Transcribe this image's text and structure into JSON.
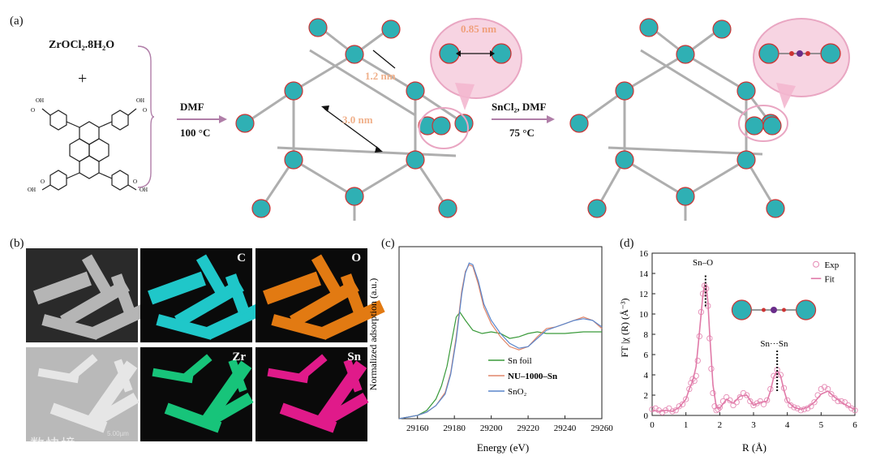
{
  "panel_a": {
    "label": "(a)",
    "reagent_1": "ZrOCl₂.8H₂O",
    "plus": "+",
    "linker_cooh": [
      "OH",
      "OH",
      "OH",
      "OH",
      "O",
      "O",
      "O",
      "O"
    ],
    "step1_top": "DMF",
    "step1_bottom": "100 °C",
    "step2_top": "SnCl₂, DMF",
    "step2_bottom": "75 °C",
    "dist_1": "0.85 nm",
    "dist_2": "1.2 nm",
    "dist_3": "3.0 nm"
  },
  "panel_b": {
    "label": "(b)",
    "maps": [
      {
        "tag": "",
        "color": "#6c6c6c"
      },
      {
        "tag": "C",
        "color": "#1fc7c9"
      },
      {
        "tag": "O",
        "color": "#e27a12"
      },
      {
        "tag": "",
        "color": "#9a9a9a"
      },
      {
        "tag": "Zr",
        "color": "#17c47a"
      },
      {
        "tag": "Sn",
        "color": "#e01a8a"
      }
    ],
    "scale_text": "5.00µm",
    "watermark": "八数快境"
  },
  "panel_c": {
    "label": "(c)",
    "chart_data": {
      "type": "line",
      "xlabel": "Energy (eV)",
      "ylabel": "Normalized adsorption (a.u.)",
      "xlim": [
        29150,
        29260
      ],
      "xticks": [
        29160,
        29180,
        29200,
        29220,
        29240,
        29260
      ],
      "legend_position": "bottom-center",
      "series": [
        {
          "name": "Sn foil",
          "color": "#3a9a3a",
          "x": [
            29150,
            29160,
            29165,
            29170,
            29173,
            29176,
            29179,
            29181,
            29183,
            29186,
            29190,
            29195,
            29200,
            29205,
            29210,
            29215,
            29220,
            29225,
            29230,
            29240,
            29250,
            29260
          ],
          "y": [
            0.0,
            0.02,
            0.05,
            0.12,
            0.2,
            0.32,
            0.5,
            0.62,
            0.65,
            0.6,
            0.54,
            0.52,
            0.53,
            0.52,
            0.49,
            0.5,
            0.52,
            0.53,
            0.52,
            0.52,
            0.53,
            0.53
          ]
        },
        {
          "name": "NU–1000–Sn",
          "color": "#e0866a",
          "x": [
            29150,
            29160,
            29165,
            29170,
            29175,
            29178,
            29181,
            29184,
            29186,
            29188,
            29190,
            29193,
            29196,
            29200,
            29205,
            29210,
            29215,
            29220,
            29225,
            29230,
            29235,
            29240,
            29245,
            29250,
            29255,
            29260
          ],
          "y": [
            0.0,
            0.02,
            0.04,
            0.08,
            0.16,
            0.28,
            0.5,
            0.78,
            0.9,
            0.94,
            0.93,
            0.82,
            0.68,
            0.58,
            0.5,
            0.44,
            0.42,
            0.44,
            0.5,
            0.55,
            0.56,
            0.58,
            0.6,
            0.62,
            0.6,
            0.55
          ]
        },
        {
          "name": "SnO₂",
          "color": "#5a86cc",
          "x": [
            29150,
            29160,
            29165,
            29170,
            29175,
            29178,
            29181,
            29184,
            29186,
            29188,
            29190,
            29193,
            29196,
            29200,
            29205,
            29210,
            29215,
            29220,
            29225,
            29230,
            29235,
            29240,
            29245,
            29250,
            29255,
            29260
          ],
          "y": [
            0.0,
            0.02,
            0.04,
            0.08,
            0.15,
            0.27,
            0.48,
            0.76,
            0.89,
            0.95,
            0.94,
            0.84,
            0.7,
            0.6,
            0.52,
            0.46,
            0.43,
            0.44,
            0.49,
            0.54,
            0.56,
            0.58,
            0.6,
            0.61,
            0.6,
            0.56
          ]
        }
      ]
    }
  },
  "panel_d": {
    "label": "(d)",
    "peak_1": "Sn–O",
    "peak_2": "Sn···Sn",
    "chart_data": {
      "type": "scatter",
      "xlabel": "R (Å)",
      "ylabel": "FT |χ (R) (Å⁻³)",
      "xlim": [
        0,
        6
      ],
      "ylim": [
        0,
        16
      ],
      "xticks": [
        0,
        1,
        2,
        3,
        4,
        5,
        6
      ],
      "yticks": [
        0,
        2,
        4,
        6,
        8,
        10,
        12,
        14,
        16
      ],
      "legend_position": "top-right",
      "series": [
        {
          "name": "Exp",
          "color": "#e58ab4",
          "marker": "circle-open",
          "x": [
            0.0,
            0.1,
            0.2,
            0.3,
            0.4,
            0.5,
            0.6,
            0.7,
            0.8,
            0.9,
            1.0,
            1.1,
            1.15,
            1.2,
            1.25,
            1.3,
            1.35,
            1.4,
            1.45,
            1.5,
            1.55,
            1.6,
            1.65,
            1.7,
            1.75,
            1.8,
            1.85,
            1.9,
            1.95,
            2.0,
            2.1,
            2.2,
            2.3,
            2.4,
            2.5,
            2.6,
            2.7,
            2.8,
            2.9,
            3.0,
            3.1,
            3.2,
            3.3,
            3.4,
            3.5,
            3.6,
            3.7,
            3.8,
            3.9,
            4.0,
            4.1,
            4.2,
            4.3,
            4.4,
            4.5,
            4.6,
            4.7,
            4.8,
            4.9,
            5.0,
            5.1,
            5.2,
            5.3,
            5.4,
            5.5,
            5.6,
            5.7,
            5.8,
            5.9,
            6.0
          ],
          "y": [
            0.6,
            0.7,
            0.5,
            0.3,
            0.5,
            0.7,
            0.4,
            0.5,
            0.9,
            1.1,
            1.6,
            2.6,
            3.2,
            3.6,
            3.4,
            3.9,
            5.4,
            7.8,
            10.2,
            12.0,
            12.8,
            12.5,
            10.8,
            7.6,
            4.6,
            2.2,
            0.9,
            0.5,
            0.6,
            0.8,
            1.4,
            1.8,
            1.5,
            1.0,
            1.3,
            1.8,
            2.2,
            2.0,
            1.4,
            1.0,
            1.2,
            1.4,
            1.1,
            1.5,
            2.6,
            3.9,
            4.5,
            4.0,
            2.7,
            1.5,
            1.0,
            0.8,
            0.7,
            0.5,
            0.6,
            0.7,
            0.9,
            1.3,
            2.0,
            2.6,
            2.8,
            2.6,
            2.1,
            1.7,
            1.4,
            1.4,
            1.3,
            1.0,
            0.7,
            0.5
          ]
        },
        {
          "name": "Fit",
          "color": "#e07aa8",
          "marker": "line",
          "x": [
            0.0,
            0.2,
            0.4,
            0.6,
            0.8,
            1.0,
            1.1,
            1.2,
            1.3,
            1.4,
            1.5,
            1.55,
            1.6,
            1.65,
            1.7,
            1.8,
            1.9,
            2.0,
            2.2,
            2.4,
            2.6,
            2.8,
            3.0,
            3.2,
            3.4,
            3.5,
            3.6,
            3.7,
            3.8,
            3.9,
            4.0,
            4.2,
            4.4,
            4.6,
            4.8,
            5.0,
            5.2,
            5.4,
            5.6,
            5.8,
            6.0
          ],
          "y": [
            0.5,
            0.4,
            0.5,
            0.4,
            0.8,
            1.6,
            2.6,
            3.4,
            4.8,
            8.2,
            11.8,
            12.9,
            12.7,
            11.2,
            8.2,
            3.0,
            0.8,
            0.7,
            1.6,
            1.2,
            1.9,
            2.0,
            1.0,
            1.3,
            1.4,
            2.4,
            3.8,
            4.4,
            3.9,
            2.5,
            1.4,
            0.8,
            0.6,
            0.8,
            1.3,
            2.1,
            2.4,
            1.8,
            1.3,
            0.9,
            0.6
          ]
        }
      ]
    }
  }
}
